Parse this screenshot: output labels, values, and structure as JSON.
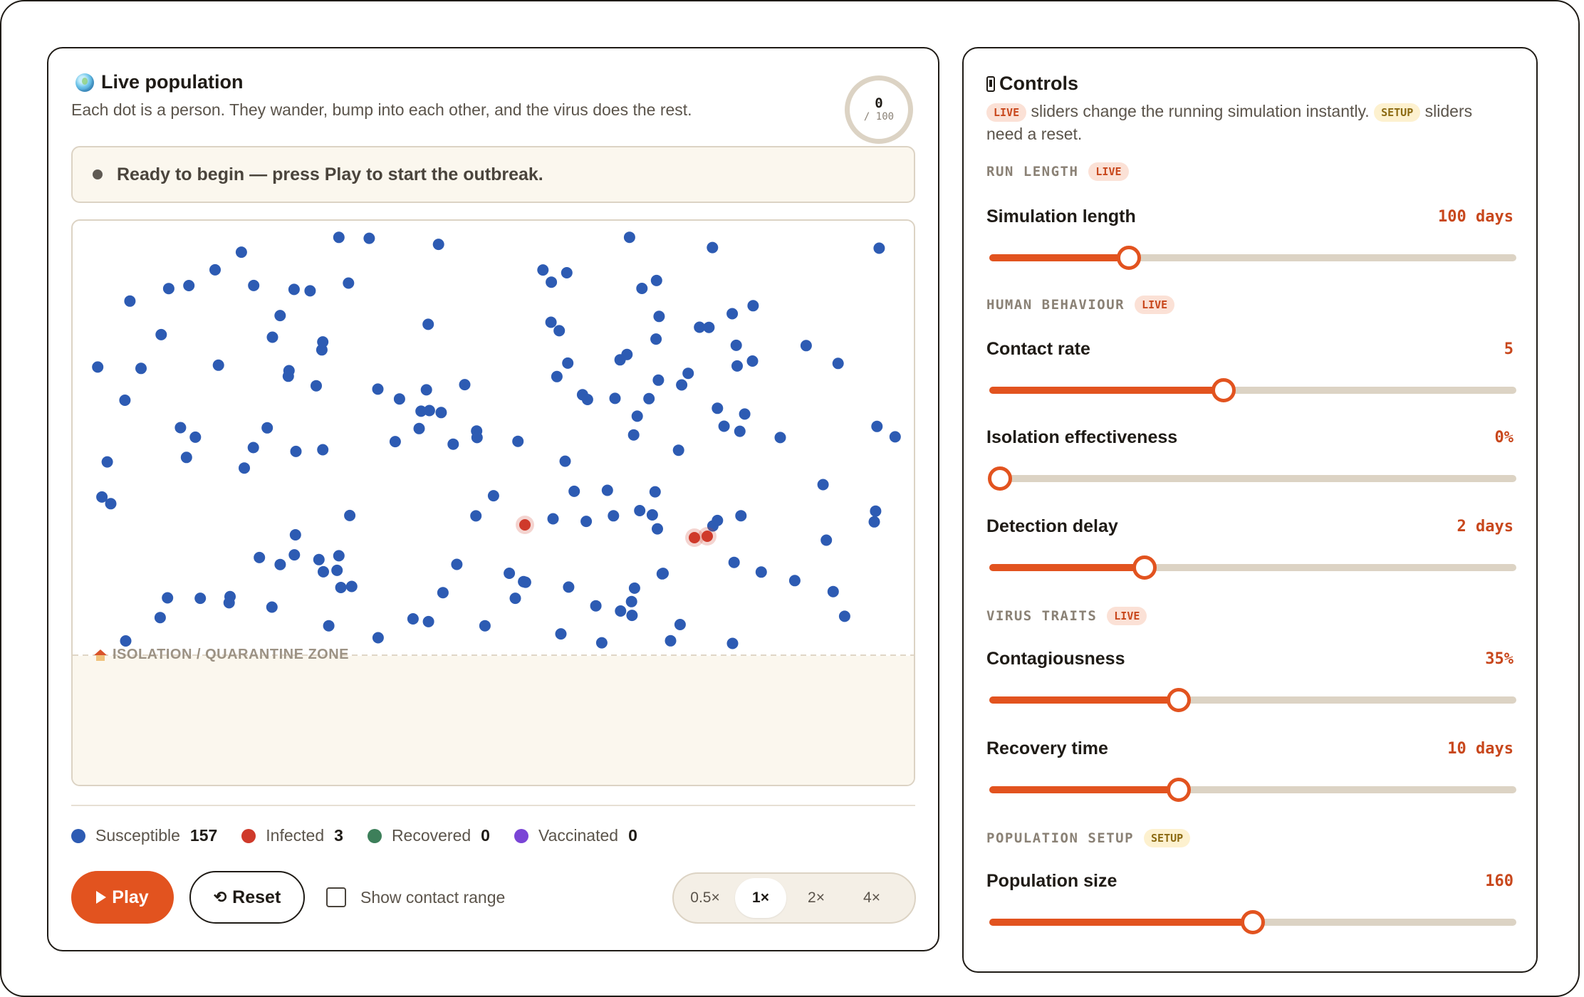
{
  "simulation": {
    "title": "Live population",
    "subtitle": "Each dot is a person. They wander, bump into each other, and the virus does the rest.",
    "day_counter": {
      "value": "0",
      "total": "/ 100",
      "progress": 0
    },
    "status_text": "Ready to begin — press Play to start the outbreak.",
    "isolation_zone_label": "ISOLATION / QUARANTINE ZONE",
    "colors": {
      "susceptible": "#2d5bb3",
      "infected": "#cf3a2b",
      "recovered": "#3d7f5a",
      "vaccinated": "#7a45d6",
      "accent": "#e2531f"
    },
    "legend": [
      {
        "label": "Susceptible",
        "count": "157"
      },
      {
        "label": "Infected",
        "count": "3"
      },
      {
        "label": "Recovered",
        "count": "0"
      },
      {
        "label": "Vaccinated",
        "count": "0"
      }
    ],
    "play_label": "Play",
    "reset_label": "Reset",
    "show_contact_label": "Show contact range",
    "show_contact_checked": false,
    "speeds": [
      "0.5×",
      "1×",
      "2×",
      "4×"
    ],
    "selected_speed": "1×"
  },
  "controls": {
    "title": "Controls",
    "subtitle_live_tag": "LIVE",
    "subtitle_part1": "sliders change the running simulation instantly.",
    "subtitle_setup_tag": "SETUP",
    "subtitle_part2": "sliders need a reset.",
    "sections": {
      "run_length": {
        "name": "RUN LENGTH",
        "tag": "LIVE"
      },
      "human_behaviour": {
        "name": "HUMAN BEHAVIOUR",
        "tag": "LIVE"
      },
      "virus_traits": {
        "name": "VIRUS TRAITS",
        "tag": "LIVE"
      },
      "population_setup": {
        "name": "POPULATION SETUP",
        "tag": "SETUP"
      }
    },
    "sliders": {
      "simulation_length": {
        "label": "Simulation length",
        "value": "100 days",
        "fraction": 0.265
      },
      "contact_rate": {
        "label": "Contact rate",
        "value": "5",
        "fraction": 0.445
      },
      "isolation": {
        "label": "Isolation effectiveness",
        "value": "0%",
        "fraction": 0.02
      },
      "detection_delay": {
        "label": "Detection delay",
        "value": "2 days",
        "fraction": 0.295
      },
      "contagiousness": {
        "label": "Contagiousness",
        "value": "35%",
        "fraction": 0.36
      },
      "recovery_time": {
        "label": "Recovery time",
        "value": "10 days",
        "fraction": 0.36
      },
      "population_size": {
        "label": "Population size",
        "value": "160",
        "fraction": 0.5
      }
    }
  }
}
